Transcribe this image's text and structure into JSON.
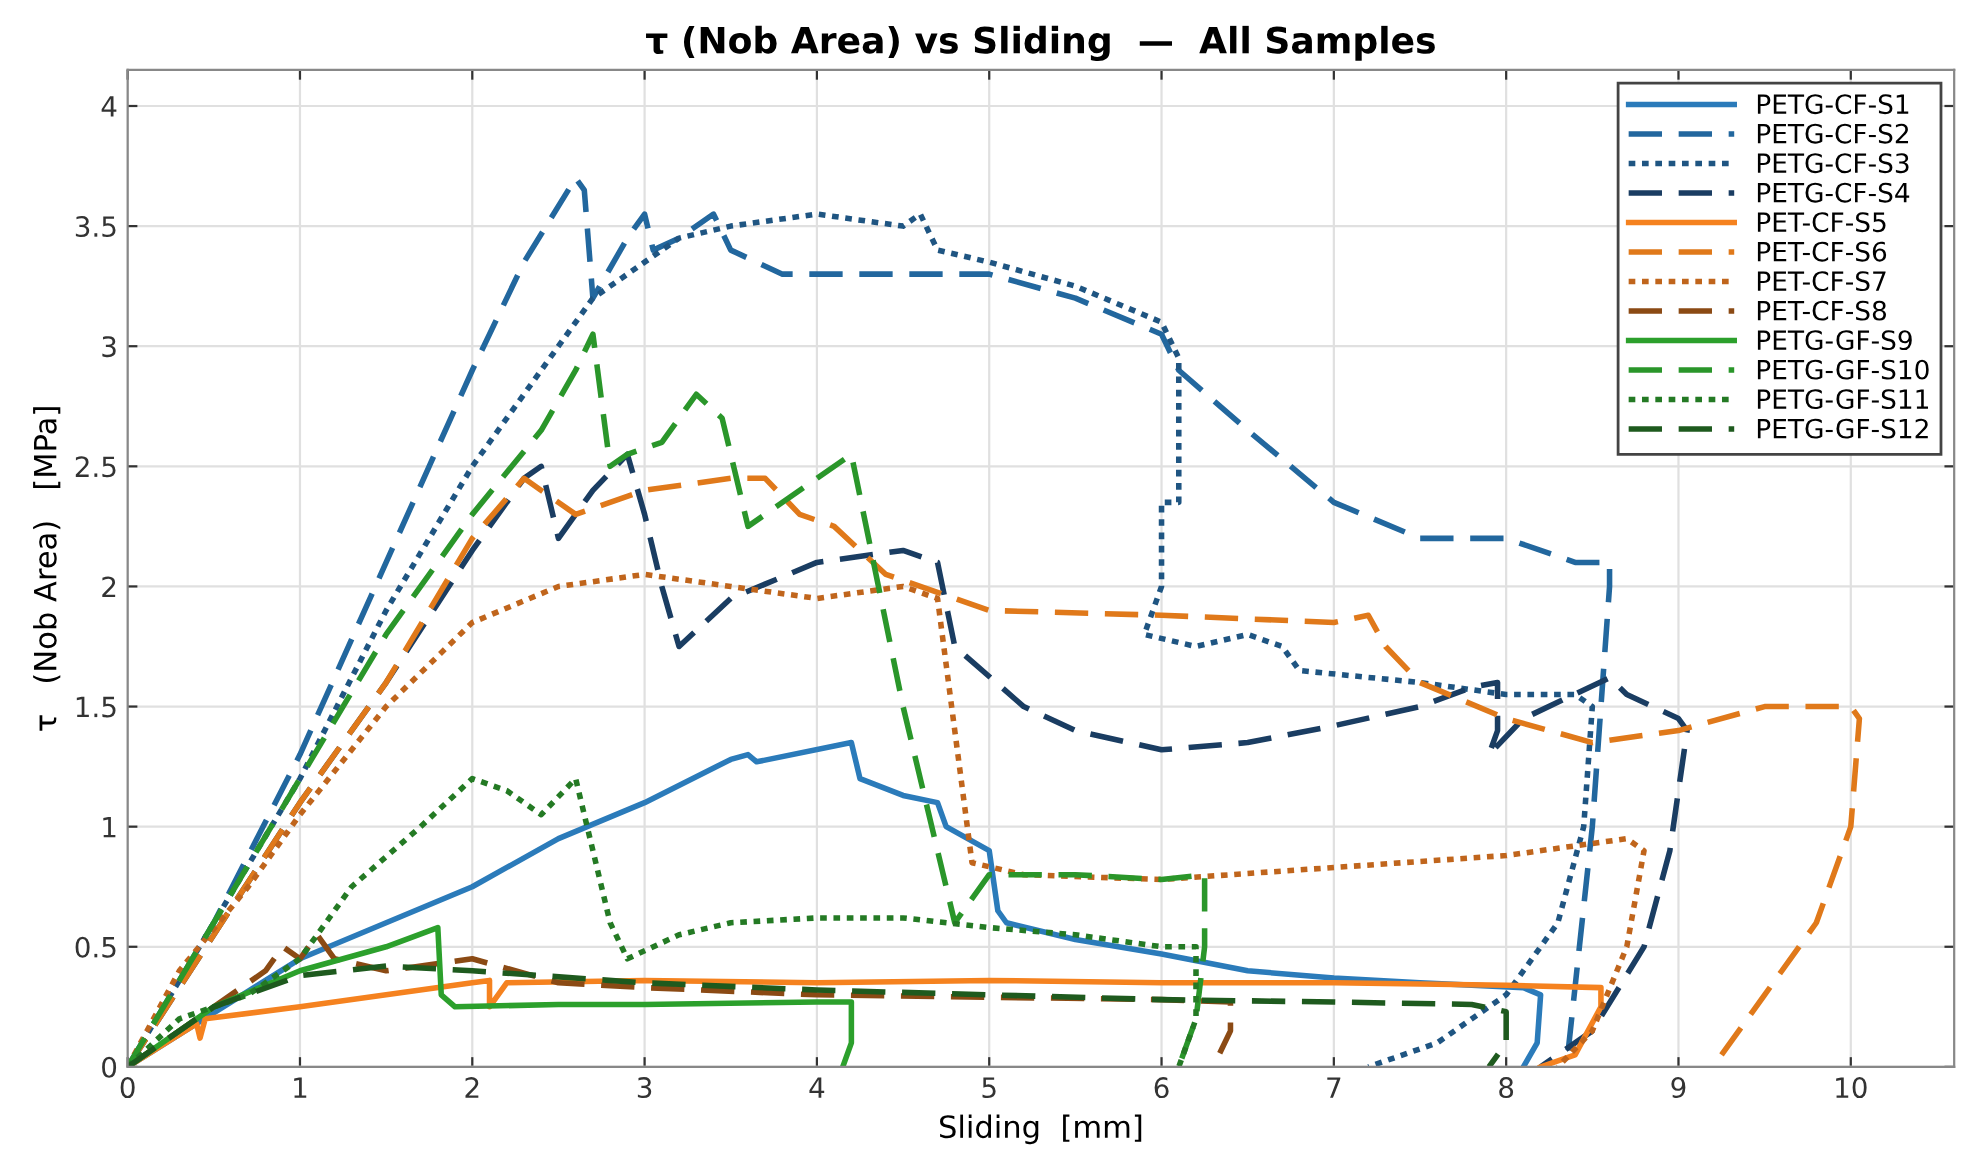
{
  "chart_data": {
    "type": "line",
    "title": "τ (Nob Area) vs Sliding  —  All Samples",
    "xlabel": "Sliding  [mm]",
    "ylabel": "τ   (Nob Area)   [MPa]",
    "xlim": [
      0,
      10.6
    ],
    "ylim": [
      0,
      4.15
    ],
    "xticks": [
      0,
      1,
      2,
      3,
      4,
      5,
      6,
      7,
      8,
      9,
      10
    ],
    "yticks": [
      0,
      0.5,
      1,
      1.5,
      2,
      2.5,
      3,
      3.5,
      4
    ],
    "grid": true,
    "legend": "top right",
    "series": [
      {
        "name": "PETG-CF-S1",
        "color": "#2b7bba",
        "line_style": "solid",
        "x": [
          0,
          1,
          2,
          2.5,
          3,
          3.5,
          3.6,
          3.65,
          4.2,
          4.25,
          4.5,
          4.7,
          4.75,
          5.0,
          5.05,
          5.1,
          5.5,
          6,
          6.5,
          7,
          7.5,
          8.1,
          8.2,
          8.18,
          8.1
        ],
        "values": [
          0,
          0.45,
          0.75,
          0.95,
          1.1,
          1.28,
          1.3,
          1.27,
          1.35,
          1.2,
          1.13,
          1.1,
          1.0,
          0.9,
          0.65,
          0.6,
          0.53,
          0.47,
          0.4,
          0.37,
          0.35,
          0.33,
          0.3,
          0.1,
          0
        ]
      },
      {
        "name": "PETG-CF-S2",
        "color": "#22679e",
        "line_style": "dashed",
        "x": [
          0,
          0.5,
          1,
          1.5,
          2,
          2.3,
          2.6,
          2.65,
          2.7,
          2.9,
          3.0,
          3.05,
          3.2,
          3.4,
          3.5,
          3.8,
          4.2,
          5,
          5.5,
          6,
          6.1,
          6.5,
          7,
          7.5,
          8,
          8.4,
          8.6,
          8.6,
          8.5,
          8.35
        ],
        "values": [
          0,
          0.6,
          1.3,
          2.1,
          2.9,
          3.35,
          3.7,
          3.65,
          3.2,
          3.45,
          3.55,
          3.4,
          3.45,
          3.55,
          3.4,
          3.3,
          3.3,
          3.3,
          3.2,
          3.05,
          2.9,
          2.65,
          2.35,
          2.2,
          2.2,
          2.1,
          2.1,
          2.0,
          1.0,
          0
        ]
      },
      {
        "name": "PETG-CF-S3",
        "color": "#1f5582",
        "line_style": "dotted",
        "x": [
          0,
          0.5,
          1,
          1.5,
          2,
          2.5,
          2.7,
          3,
          3.2,
          3.5,
          4,
          4.5,
          4.6,
          4.7,
          5,
          5.5,
          6,
          6.1,
          6.1,
          6.0,
          6.0,
          5.9,
          6.2,
          6.5,
          6.7,
          6.8,
          7.5,
          8,
          8.4,
          8.5,
          8.45,
          8.3,
          8.0,
          7.6,
          7.2
        ],
        "values": [
          0,
          0.6,
          1.2,
          1.9,
          2.5,
          3.0,
          3.2,
          3.35,
          3.45,
          3.5,
          3.55,
          3.5,
          3.55,
          3.4,
          3.35,
          3.25,
          3.1,
          2.95,
          2.35,
          2.35,
          2.0,
          1.8,
          1.75,
          1.8,
          1.75,
          1.65,
          1.6,
          1.55,
          1.55,
          1.5,
          1.0,
          0.6,
          0.3,
          0.1,
          0
        ]
      },
      {
        "name": "PETG-CF-S4",
        "color": "#1a3d62",
        "line_style": "dashed",
        "x": [
          0,
          0.5,
          1,
          1.5,
          2,
          2.3,
          2.4,
          2.5,
          2.7,
          2.9,
          3.0,
          3.1,
          3.2,
          3.5,
          4,
          4.5,
          4.7,
          4.8,
          5.2,
          5.5,
          6,
          6.5,
          7,
          7.5,
          7.8,
          7.95,
          7.95,
          7.9,
          8.1,
          8.6,
          8.7,
          9.0,
          9.05,
          8.95,
          8.8,
          8.5,
          8.2
        ],
        "values": [
          0,
          0.55,
          1.1,
          1.6,
          2.15,
          2.45,
          2.5,
          2.2,
          2.4,
          2.55,
          2.3,
          2.0,
          1.75,
          1.95,
          2.1,
          2.15,
          2.1,
          1.75,
          1.5,
          1.4,
          1.32,
          1.35,
          1.42,
          1.5,
          1.58,
          1.6,
          1.4,
          1.3,
          1.45,
          1.62,
          1.55,
          1.45,
          1.4,
          0.9,
          0.5,
          0.15,
          0
        ]
      },
      {
        "name": "PET-CF-S5",
        "color": "#f5821f",
        "line_style": "solid",
        "x": [
          0,
          0.4,
          0.42,
          0.45,
          1,
          1.5,
          2,
          2.1,
          2.1,
          2.2,
          3,
          4,
          5,
          6,
          7,
          8,
          8.55,
          8.55,
          8.4,
          8.2
        ],
        "values": [
          0,
          0.18,
          0.12,
          0.2,
          0.25,
          0.3,
          0.35,
          0.36,
          0.25,
          0.35,
          0.36,
          0.35,
          0.36,
          0.35,
          0.35,
          0.34,
          0.33,
          0.25,
          0.05,
          0
        ]
      },
      {
        "name": "PET-CF-S6",
        "color": "#e0791a",
        "line_style": "dashed",
        "x": [
          0,
          0.5,
          1,
          1.5,
          2,
          2.3,
          2.6,
          3,
          3.5,
          3.7,
          3.9,
          4.1,
          4.4,
          5,
          6,
          7,
          7.2,
          7.3,
          7.5,
          8,
          8.5,
          9,
          9.5,
          10,
          10.05,
          10.0,
          9.8,
          9.5,
          9.2
        ],
        "values": [
          0,
          0.55,
          1.1,
          1.6,
          2.2,
          2.45,
          2.3,
          2.4,
          2.45,
          2.45,
          2.3,
          2.25,
          2.05,
          1.9,
          1.88,
          1.85,
          1.88,
          1.75,
          1.6,
          1.45,
          1.35,
          1.4,
          1.5,
          1.5,
          1.45,
          1.0,
          0.6,
          0.3,
          0
        ]
      },
      {
        "name": "PET-CF-S7",
        "color": "#c0651c",
        "line_style": "dotted",
        "x": [
          0,
          0.3,
          0.7,
          1,
          1.5,
          2,
          2.5,
          3,
          3.5,
          4,
          4.5,
          4.7,
          4.8,
          4.9,
          5.2,
          6,
          7,
          8,
          8.7,
          8.8,
          8.7,
          8.5,
          8.3
        ],
        "values": [
          0,
          0.4,
          0.75,
          1.05,
          1.5,
          1.85,
          2.0,
          2.05,
          2.0,
          1.95,
          2.0,
          1.95,
          1.4,
          0.85,
          0.8,
          0.78,
          0.83,
          0.88,
          0.95,
          0.9,
          0.5,
          0.15,
          0
        ]
      },
      {
        "name": "PET-CF-S8",
        "color": "#8b4a14",
        "line_style": "dashed",
        "x": [
          0,
          0.5,
          0.8,
          0.9,
          1,
          1.1,
          1.2,
          1.5,
          2,
          2.5,
          3,
          4,
          5,
          6,
          6.4,
          6.4,
          6.3
        ],
        "values": [
          0,
          0.25,
          0.4,
          0.5,
          0.45,
          0.55,
          0.45,
          0.4,
          0.45,
          0.35,
          0.33,
          0.3,
          0.29,
          0.28,
          0.27,
          0.15,
          0
        ]
      },
      {
        "name": "PETG-GF-S9",
        "color": "#2ca02c",
        "line_style": "solid",
        "x": [
          0,
          0.5,
          1,
          1.5,
          1.8,
          1.82,
          1.9,
          2.5,
          3,
          4,
          4.2,
          4.2,
          4.15
        ],
        "values": [
          0,
          0.25,
          0.4,
          0.5,
          0.58,
          0.3,
          0.25,
          0.26,
          0.26,
          0.27,
          0.27,
          0.1,
          0
        ]
      },
      {
        "name": "PETG-GF-S10",
        "color": "#2a962a",
        "line_style": "dashed",
        "x": [
          0,
          0.5,
          1,
          1.5,
          2,
          2.4,
          2.6,
          2.7,
          2.8,
          2.9,
          3.1,
          3.3,
          3.45,
          3.6,
          3.7,
          4,
          4.2,
          4.3,
          4.5,
          4.7,
          4.8,
          5.0,
          5.5,
          6,
          6.25,
          6.25,
          6.2,
          6.1
        ],
        "values": [
          0,
          0.6,
          1.2,
          1.8,
          2.3,
          2.65,
          2.9,
          3.05,
          2.5,
          2.55,
          2.6,
          2.8,
          2.7,
          2.25,
          2.3,
          2.45,
          2.55,
          2.2,
          1.5,
          0.9,
          0.6,
          0.8,
          0.8,
          0.78,
          0.8,
          0.5,
          0.2,
          0
        ]
      },
      {
        "name": "PETG-GF-S11",
        "color": "#247a24",
        "line_style": "dotted",
        "x": [
          0,
          0.3,
          0.7,
          1,
          1.3,
          1.7,
          2,
          2.2,
          2.4,
          2.6,
          2.7,
          2.8,
          2.9,
          3.2,
          3.5,
          4,
          4.5,
          5,
          5.5,
          6,
          6.2,
          6.2,
          6.1
        ],
        "values": [
          0,
          0.2,
          0.3,
          0.45,
          0.75,
          1.0,
          1.2,
          1.15,
          1.05,
          1.2,
          0.9,
          0.6,
          0.45,
          0.55,
          0.6,
          0.62,
          0.62,
          0.58,
          0.55,
          0.5,
          0.5,
          0.2,
          0
        ]
      },
      {
        "name": "PETG-GF-S12",
        "color": "#1e5a1e",
        "line_style": "dashed",
        "x": [
          0,
          0.5,
          1,
          1.5,
          2,
          3,
          4,
          5,
          6,
          7,
          7.8,
          8.0,
          8.0,
          7.9
        ],
        "values": [
          0,
          0.25,
          0.38,
          0.42,
          0.4,
          0.35,
          0.32,
          0.3,
          0.28,
          0.27,
          0.26,
          0.23,
          0.1,
          0
        ]
      }
    ]
  }
}
